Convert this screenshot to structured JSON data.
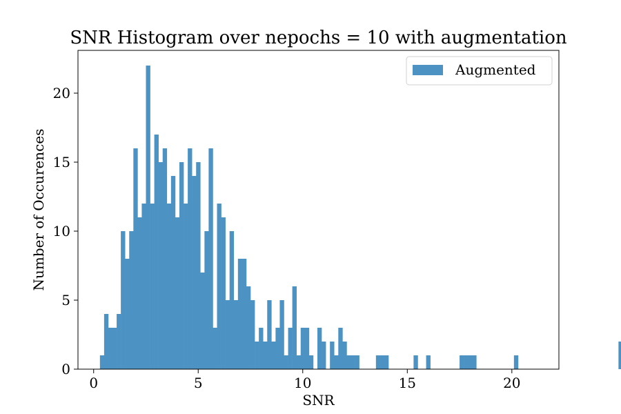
{
  "chart_data": {
    "type": "bar",
    "title": "SNR Histogram over nepochs = 10 with augmentation",
    "xlabel": "SNR",
    "ylabel": "Number of Occurences",
    "xlim": [
      -0.75,
      22.25
    ],
    "ylim": [
      0,
      23.1
    ],
    "xticks": [
      0,
      5,
      10,
      15,
      20
    ],
    "yticks": [
      0,
      5,
      10,
      15,
      20
    ],
    "grid": false,
    "legend_position": "top-right",
    "bar_color": "#4c93c4",
    "bin_start": 0.3,
    "bin_width": 0.2,
    "series": [
      {
        "name": "Augmented",
        "counts": [
          1,
          4,
          3,
          3,
          4,
          10,
          8,
          10,
          16,
          11,
          12,
          22,
          12,
          17,
          15,
          16,
          12,
          14,
          11,
          15,
          12,
          16,
          14,
          15,
          7,
          10,
          16,
          3,
          12,
          11,
          5,
          10,
          5,
          8,
          8,
          6,
          5,
          2,
          3,
          2,
          5,
          2,
          3,
          5,
          1,
          3,
          6,
          1,
          3,
          3,
          1,
          0,
          3,
          2,
          0,
          2,
          1,
          3,
          2,
          1,
          1,
          1,
          0,
          0,
          0,
          0,
          1,
          1,
          1,
          0,
          0,
          0,
          0,
          0,
          0,
          1,
          0,
          0,
          1,
          0,
          0,
          0,
          0,
          0,
          0,
          0,
          1,
          1,
          1,
          1,
          0,
          0,
          0,
          0,
          0,
          0,
          0,
          0,
          0,
          1,
          0,
          0,
          0,
          0,
          0,
          0,
          0,
          0,
          0,
          0,
          0,
          0,
          0,
          0,
          0,
          0,
          0,
          0,
          0,
          0,
          0,
          0,
          0,
          0,
          2
        ]
      }
    ]
  }
}
